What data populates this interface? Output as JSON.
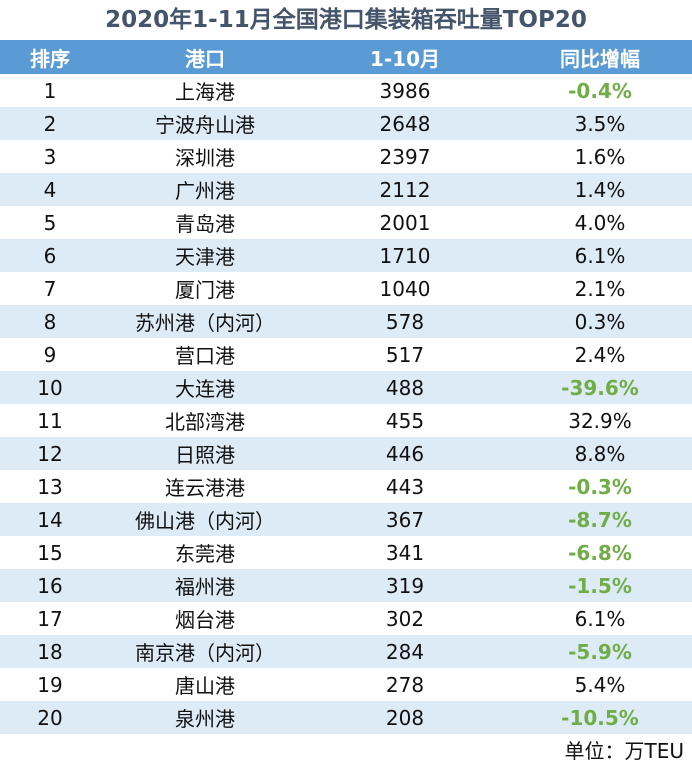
{
  "title": "2020年1-11月全国港口集装箱吞吐量TOP20",
  "headers": [
    "排序",
    "港口",
    "1-10月",
    "同比增幅"
  ],
  "unit": "单位：万TEU",
  "colors": {
    "header_bg": "#5b9bd5",
    "alt_row": "#ddebf7",
    "negative": "#70ad47",
    "title": "#44546a"
  },
  "rows": [
    {
      "rank": "1",
      "port": "上海港",
      "value": "3986",
      "yoy": "-0.4%",
      "neg": true
    },
    {
      "rank": "2",
      "port": "宁波舟山港",
      "value": "2648",
      "yoy": "3.5%",
      "neg": false
    },
    {
      "rank": "3",
      "port": "深圳港",
      "value": "2397",
      "yoy": "1.6%",
      "neg": false
    },
    {
      "rank": "4",
      "port": "广州港",
      "value": "2112",
      "yoy": "1.4%",
      "neg": false
    },
    {
      "rank": "5",
      "port": "青岛港",
      "value": "2001",
      "yoy": "4.0%",
      "neg": false
    },
    {
      "rank": "6",
      "port": "天津港",
      "value": "1710",
      "yoy": "6.1%",
      "neg": false
    },
    {
      "rank": "7",
      "port": "厦门港",
      "value": "1040",
      "yoy": "2.1%",
      "neg": false
    },
    {
      "rank": "8",
      "port": "苏州港（内河）",
      "value": "578",
      "yoy": "0.3%",
      "neg": false
    },
    {
      "rank": "9",
      "port": "营口港",
      "value": "517",
      "yoy": "2.4%",
      "neg": false
    },
    {
      "rank": "10",
      "port": "大连港",
      "value": "488",
      "yoy": "-39.6%",
      "neg": true
    },
    {
      "rank": "11",
      "port": "北部湾港",
      "value": "455",
      "yoy": "32.9%",
      "neg": false
    },
    {
      "rank": "12",
      "port": "日照港",
      "value": "446",
      "yoy": "8.8%",
      "neg": false
    },
    {
      "rank": "13",
      "port": "连云港港",
      "value": "443",
      "yoy": "-0.3%",
      "neg": true
    },
    {
      "rank": "14",
      "port": "佛山港（内河）",
      "value": "367",
      "yoy": "-8.7%",
      "neg": true
    },
    {
      "rank": "15",
      "port": "东莞港",
      "value": "341",
      "yoy": "-6.8%",
      "neg": true
    },
    {
      "rank": "16",
      "port": "福州港",
      "value": "319",
      "yoy": "-1.5%",
      "neg": true
    },
    {
      "rank": "17",
      "port": "烟台港",
      "value": "302",
      "yoy": "6.1%",
      "neg": false
    },
    {
      "rank": "18",
      "port": "南京港（内河）",
      "value": "284",
      "yoy": "-5.9%",
      "neg": true
    },
    {
      "rank": "19",
      "port": "唐山港",
      "value": "278",
      "yoy": "5.4%",
      "neg": false
    },
    {
      "rank": "20",
      "port": "泉州港",
      "value": "208",
      "yoy": "-10.5%",
      "neg": true
    }
  ],
  "chart_data": {
    "type": "table",
    "title": "2020年1-11月全国港口集装箱吞吐量TOP20",
    "columns": [
      "排序",
      "港口",
      "1-10月",
      "同比增幅"
    ],
    "unit": "万TEU",
    "categories": [
      "上海港",
      "宁波舟山港",
      "深圳港",
      "广州港",
      "青岛港",
      "天津港",
      "厦门港",
      "苏州港（内河）",
      "营口港",
      "大连港",
      "北部湾港",
      "日照港",
      "连云港港",
      "佛山港（内河）",
      "东莞港",
      "福州港",
      "烟台港",
      "南京港（内河）",
      "唐山港",
      "泉州港"
    ],
    "series": [
      {
        "name": "1-10月",
        "values": [
          3986,
          2648,
          2397,
          2112,
          2001,
          1710,
          1040,
          578,
          517,
          488,
          455,
          446,
          443,
          367,
          341,
          319,
          302,
          284,
          278,
          208
        ]
      },
      {
        "name": "同比增幅(%)",
        "values": [
          -0.4,
          3.5,
          1.6,
          1.4,
          4.0,
          6.1,
          2.1,
          0.3,
          2.4,
          -39.6,
          32.9,
          8.8,
          -0.3,
          -8.7,
          -6.8,
          -1.5,
          6.1,
          -5.9,
          5.4,
          -10.5
        ]
      }
    ]
  }
}
